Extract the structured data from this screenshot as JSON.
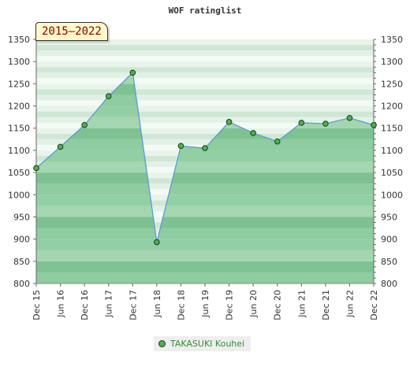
{
  "chart_data": {
    "type": "area",
    "title": "WOF ratinglist",
    "range_label": "2015–2022",
    "x": [
      "Dec 15",
      "Jun 16",
      "Dec 16",
      "Jun 17",
      "Dec 17",
      "Jun 18",
      "Dec 18",
      "Jun 19",
      "Dec 19",
      "Jun 20",
      "Dec 20",
      "Jun 21",
      "Dec 21",
      "Jun 22",
      "Dec 22"
    ],
    "series": [
      {
        "name": "TAKASUKI Kouhei",
        "values": [
          1060,
          1108,
          1157,
          1222,
          1275,
          893,
          1110,
          1105,
          1164,
          1139,
          1120,
          1162,
          1160,
          1173,
          1157
        ]
      }
    ],
    "yticks": [
      800,
      850,
      900,
      950,
      1000,
      1050,
      1100,
      1150,
      1200,
      1250,
      1300,
      1350
    ],
    "ylim": [
      800,
      1350
    ],
    "colors": {
      "line": "#5b9bd5",
      "fill": "#5fb87a",
      "marker": "#4caf50"
    }
  }
}
